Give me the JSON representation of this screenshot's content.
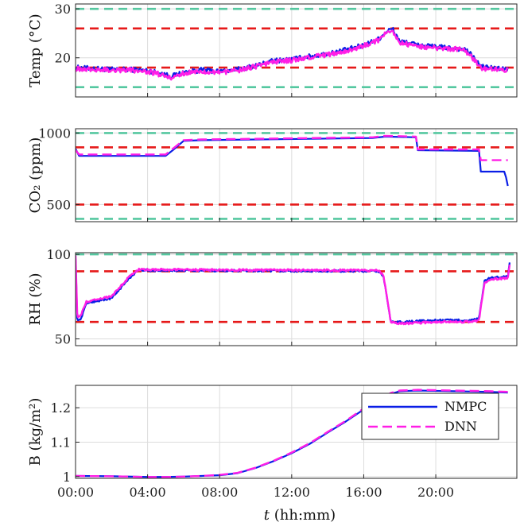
{
  "colors": {
    "nmpc": "#0a1ee6",
    "dnn": "#ff1ee6",
    "limit_red": "#e61919",
    "limit_green": "#55c8a0",
    "grid": "#dcdcdc",
    "axis": "#262626"
  },
  "figure": {
    "xlabel_italic": "t",
    "xlabel_rest": " (hh:mm)"
  },
  "chart_data": [
    {
      "type": "line",
      "ylabel": "Temp (°C)",
      "ylim": [
        12,
        31
      ],
      "yticks": [
        20,
        30
      ],
      "xlim": [
        0,
        24.5
      ],
      "xgrid": [
        4,
        8,
        12,
        16,
        20
      ],
      "hlines_red": [
        26,
        18
      ],
      "hlines_green": [
        30,
        14
      ],
      "noise": 0.5,
      "series": [
        {
          "name": "NMPC",
          "x": [
            0,
            1,
            2,
            3,
            4,
            4.8,
            5.3,
            6,
            7,
            8,
            9,
            10,
            11,
            12,
            13,
            14,
            15,
            16,
            16.8,
            17.3,
            17.6,
            18,
            19,
            20,
            21,
            21.6,
            22,
            22.5,
            23,
            24
          ],
          "y": [
            18,
            17.8,
            17.6,
            17.6,
            17.4,
            16.8,
            16.2,
            17,
            17.5,
            17.2,
            17.6,
            18.4,
            19.4,
            19.7,
            20.3,
            20.8,
            21.6,
            22.6,
            23.8,
            25.5,
            25.9,
            23.4,
            22.6,
            22.2,
            22,
            21.7,
            20.5,
            18.2,
            18,
            17.6
          ]
        },
        {
          "name": "DNN",
          "x": [
            0,
            1,
            2,
            3,
            4,
            4.8,
            5.3,
            6,
            7,
            8,
            9,
            10,
            11,
            12,
            13,
            14,
            15,
            16,
            16.8,
            17.3,
            17.6,
            18,
            19,
            20,
            21,
            21.6,
            22,
            22.5,
            23,
            24
          ],
          "y": [
            17.8,
            17.6,
            17.5,
            17.5,
            17.2,
            16.5,
            16,
            16.8,
            17.3,
            17,
            17.4,
            18.2,
            19.2,
            19.5,
            20.1,
            20.6,
            21.4,
            22.4,
            23.6,
            25.2,
            25.6,
            23.1,
            22.3,
            22,
            21.8,
            21.5,
            20.2,
            17.9,
            17.7,
            17.4
          ]
        }
      ]
    },
    {
      "type": "line",
      "ylabel": "CO₂ (ppm)",
      "ylim": [
        380,
        1030
      ],
      "yticks": [
        500,
        1000
      ],
      "xlim": [
        0,
        24.5
      ],
      "xgrid": [
        4,
        8,
        12,
        16,
        20
      ],
      "hlines_red": [
        900,
        500
      ],
      "hlines_green": [
        1000,
        400
      ],
      "noise": 0,
      "series": [
        {
          "name": "NMPC",
          "x": [
            0,
            0.2,
            5,
            5.4,
            6,
            7,
            16.5,
            17.2,
            18.9,
            19,
            22.4,
            22.5,
            23.8,
            23.9,
            24
          ],
          "y": [
            890,
            840,
            840,
            880,
            945,
            950,
            965,
            975,
            970,
            880,
            875,
            730,
            730,
            690,
            630
          ]
        },
        {
          "name": "DNN",
          "x": [
            0,
            0.2,
            5,
            5.4,
            6,
            7,
            16.5,
            17.2,
            18.9,
            19,
            22.4,
            22.5,
            23.8,
            24
          ],
          "y": [
            880,
            850,
            850,
            890,
            950,
            955,
            970,
            980,
            975,
            885,
            885,
            810,
            810,
            810
          ]
        }
      ]
    },
    {
      "type": "line",
      "ylabel": "RH (%)",
      "ylim": [
        46,
        101
      ],
      "yticks": [
        50,
        100
      ],
      "xlim": [
        0,
        24.5
      ],
      "xgrid": [
        4,
        8,
        12,
        16,
        20
      ],
      "hlines_red": [
        90,
        60
      ],
      "hlines_green": [
        100
      ],
      "noise": 0.6,
      "series": [
        {
          "name": "NMPC",
          "x": [
            0,
            0.1,
            0.3,
            0.6,
            1,
            2,
            3,
            3.5,
            4,
            16.8,
            17.1,
            17.5,
            18,
            20,
            21,
            22,
            22.4,
            22.7,
            23,
            24,
            24.1
          ],
          "y": [
            98,
            60,
            62,
            71,
            72,
            74,
            86,
            91,
            90.5,
            90,
            87,
            60,
            60,
            61,
            61,
            61,
            62,
            84,
            86,
            87,
            95
          ]
        },
        {
          "name": "DNN",
          "x": [
            0,
            0.1,
            0.3,
            0.6,
            1,
            2,
            3,
            3.5,
            4,
            16.8,
            17.1,
            17.5,
            18,
            20,
            21,
            22,
            22.4,
            22.7,
            23,
            24,
            24.1
          ],
          "y": [
            100,
            62,
            64,
            72,
            73,
            75,
            87,
            91,
            91,
            90.5,
            87.5,
            60,
            59,
            60,
            60,
            60,
            61,
            83,
            85,
            86,
            94
          ]
        }
      ]
    },
    {
      "type": "line",
      "ylabel": "B (kg/m²)",
      "ylim": [
        0.995,
        1.265
      ],
      "yticks": [
        1,
        1.1,
        1.2
      ],
      "ytick_labels": [
        "1",
        "1.1",
        "1.2"
      ],
      "xlim": [
        0,
        24.5
      ],
      "xticks": [
        0,
        4,
        8,
        12,
        16,
        20
      ],
      "xtick_labels": [
        "00:00",
        "04:00",
        "08:00",
        "12:00",
        "16:00",
        "20:00"
      ],
      "xgrid": [
        4,
        8,
        12,
        16,
        20
      ],
      "legend": "top-right",
      "noise": 0,
      "series": [
        {
          "name": "NMPC",
          "x": [
            0,
            2,
            4,
            5,
            6,
            7,
            8,
            9,
            10,
            11,
            12,
            13,
            14,
            15,
            16,
            17,
            17.5,
            18,
            19,
            20,
            21,
            22,
            23,
            24
          ],
          "y": [
            1.002,
            1.001,
            0.999,
            0.999,
            1,
            1.002,
            1.004,
            1.01,
            1.025,
            1.045,
            1.068,
            1.095,
            1.128,
            1.16,
            1.195,
            1.225,
            1.24,
            1.248,
            1.25,
            1.249,
            1.248,
            1.247,
            1.246,
            1.244
          ]
        },
        {
          "name": "DNN",
          "x": [
            0,
            2,
            4,
            5,
            6,
            7,
            8,
            9,
            10,
            11,
            12,
            13,
            14,
            15,
            16,
            17,
            17.5,
            18,
            19,
            20,
            21,
            22,
            23,
            24
          ],
          "y": [
            1.002,
            1.001,
            0.999,
            0.999,
            1,
            1.002,
            1.005,
            1.011,
            1.026,
            1.046,
            1.07,
            1.097,
            1.13,
            1.162,
            1.198,
            1.228,
            1.243,
            1.25,
            1.252,
            1.251,
            1.25,
            1.249,
            1.248,
            1.246
          ]
        }
      ]
    }
  ]
}
